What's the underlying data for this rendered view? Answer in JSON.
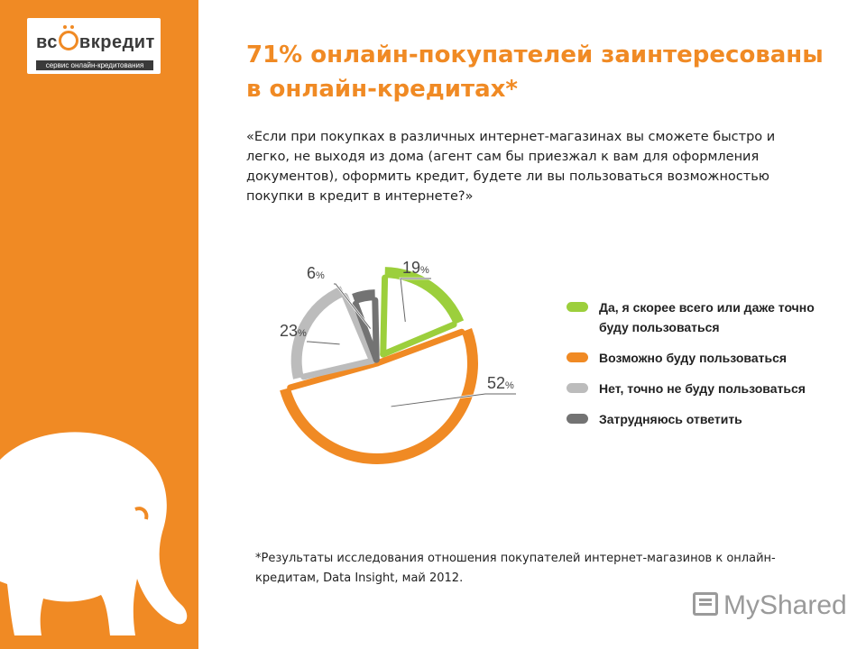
{
  "logo": {
    "name": "вс вкредит",
    "tagline": "сервис онлайн-кредитования"
  },
  "title": "71% онлайн-покупателей заинтересованы в онлайн-кредитах*",
  "question": "«Если при покупках в различных интернет-магазинах вы сможете быстро и легко, не выходя из дома (агент сам бы приезжал к вам для оформления документов), оформить кредит, будете ли вы пользоваться возможностью покупки в кредит в интернете?»",
  "footnote": "*Результаты исследования отношения покупателей интернет-магазинов к онлайн-кредитам,  Data Insight,  май 2012.",
  "watermark": "MyShared",
  "chart_data": {
    "type": "pie",
    "title": "",
    "legend_position": "right",
    "unit_suffix": "%",
    "slices": [
      {
        "label": "Да, я скорее всего или даже точно буду пользоваться",
        "value": 19,
        "color": "#9ccf3c"
      },
      {
        "label": "Возможно буду пользоваться",
        "value": 52,
        "color": "#f08a24"
      },
      {
        "label": "Нет, точно не буду пользоваться",
        "value": 23,
        "color": "#bcbcbc"
      },
      {
        "label": "Затрудняюсь ответить",
        "value": 6,
        "color": "#737373"
      }
    ]
  }
}
